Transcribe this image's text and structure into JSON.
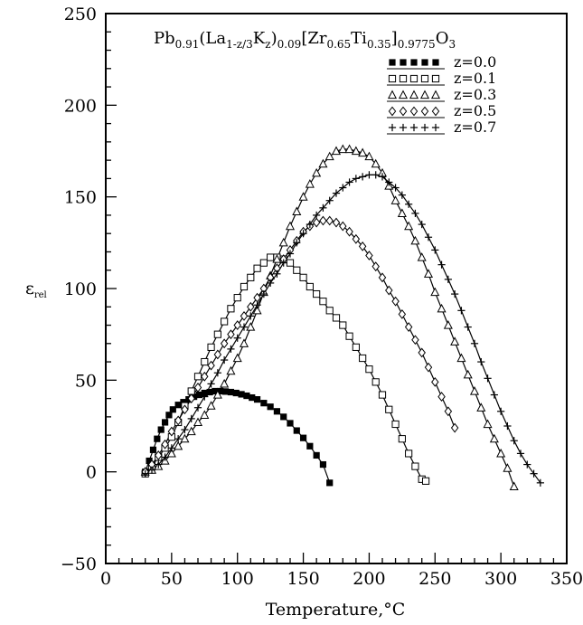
{
  "chart_data": {
    "type": "scatter",
    "title_main": "Pb",
    "title_parts": [
      {
        "t": "Pb",
        "sub": false
      },
      {
        "t": "0.91",
        "sub": true
      },
      {
        "t": "(La",
        "sub": false
      },
      {
        "t": "1-z/3",
        "sub": true
      },
      {
        "t": "K",
        "sub": false
      },
      {
        "t": "z",
        "sub": true
      },
      {
        "t": ")",
        "sub": false
      },
      {
        "t": "0.09",
        "sub": true
      },
      {
        "t": "[Zr",
        "sub": false
      },
      {
        "t": "0.65",
        "sub": true
      },
      {
        "t": "Ti",
        "sub": false
      },
      {
        "t": "0.35",
        "sub": true
      },
      {
        "t": "]",
        "sub": false
      },
      {
        "t": "0.9775",
        "sub": true
      },
      {
        "t": "O",
        "sub": false
      },
      {
        "t": "3",
        "sub": true
      }
    ],
    "xlabel": "Temperature,°C",
    "ylabel_main": "ε",
    "ylabel_sub": "rel",
    "xlim": [
      0,
      350
    ],
    "ylim": [
      -50,
      250
    ],
    "xticks": [
      0,
      50,
      100,
      150,
      200,
      250,
      300,
      350
    ],
    "yticks": [
      -50,
      0,
      50,
      100,
      150,
      200,
      250
    ],
    "legend_position": "top-right",
    "series": [
      {
        "name": "z=0.0",
        "marker": "filled-square",
        "sym": "■■■■■",
        "fit": true,
        "x": [
          30,
          33,
          36,
          39,
          42,
          45,
          48,
          51,
          55,
          59,
          63,
          67,
          71,
          75,
          79,
          83,
          87,
          91,
          95,
          99,
          103,
          107,
          111,
          115,
          120,
          125,
          130,
          135,
          140,
          145,
          150,
          155,
          160,
          165,
          170
        ],
        "y": [
          0,
          6,
          12,
          18,
          23,
          27,
          31,
          34,
          36.5,
          38,
          39.5,
          41,
          42,
          43,
          43.5,
          44,
          44,
          43.8,
          43.5,
          43,
          42.3,
          41.5,
          40.5,
          39.5,
          37.5,
          35.5,
          33,
          30,
          26.5,
          22.5,
          18.5,
          14,
          9,
          4,
          -6
        ]
      },
      {
        "name": "z=0.1",
        "marker": "open-square",
        "sym": "□□□□□",
        "fit": true,
        "x": [
          30,
          35,
          40,
          45,
          50,
          55,
          60,
          65,
          70,
          75,
          80,
          85,
          90,
          95,
          100,
          105,
          110,
          115,
          120,
          125,
          130,
          135,
          140,
          145,
          150,
          155,
          160,
          165,
          170,
          175,
          180,
          185,
          190,
          195,
          200,
          205,
          210,
          215,
          220,
          225,
          230,
          235,
          240,
          243
        ],
        "y": [
          -1,
          3,
          8,
          13,
          19,
          27,
          36,
          44,
          52,
          60,
          68,
          75,
          82,
          89,
          95,
          101,
          106,
          111,
          114,
          117,
          117,
          116,
          114,
          110,
          106,
          101,
          97,
          93,
          88,
          84,
          80,
          74,
          68,
          62,
          56,
          49,
          42,
          34,
          26,
          18,
          10,
          3,
          -4,
          -5
        ]
      },
      {
        "name": "z=0.3",
        "marker": "open-triangle",
        "sym": "△△△△△",
        "fit": true,
        "x": [
          30,
          35,
          40,
          45,
          50,
          55,
          60,
          65,
          70,
          75,
          80,
          85,
          90,
          95,
          100,
          105,
          110,
          115,
          120,
          125,
          130,
          135,
          140,
          145,
          150,
          155,
          160,
          165,
          170,
          175,
          180,
          185,
          190,
          195,
          200,
          205,
          210,
          215,
          220,
          225,
          230,
          235,
          240,
          245,
          250,
          255,
          260,
          265,
          270,
          275,
          280,
          285,
          290,
          295,
          300,
          305,
          310
        ],
        "y": [
          0,
          1,
          3,
          6,
          10,
          14,
          18,
          22,
          27,
          31,
          36,
          42,
          48,
          55,
          62,
          70,
          79,
          88,
          98,
          107,
          116,
          125,
          134,
          142,
          150,
          157,
          163,
          168,
          172,
          175,
          176,
          176,
          175,
          174,
          172,
          168,
          163,
          156,
          148,
          141,
          134,
          126,
          117,
          108,
          98,
          89,
          80,
          71,
          62,
          53,
          44,
          35,
          26,
          18,
          10,
          2,
          -8
        ]
      },
      {
        "name": "z=0.5",
        "marker": "open-diamond",
        "sym": "◊◊◊◊◊",
        "fit": true,
        "x": [
          30,
          35,
          40,
          45,
          50,
          55,
          60,
          65,
          70,
          75,
          80,
          85,
          90,
          95,
          100,
          105,
          110,
          115,
          120,
          125,
          130,
          135,
          140,
          145,
          150,
          155,
          160,
          165,
          170,
          175,
          180,
          185,
          190,
          195,
          200,
          205,
          210,
          215,
          220,
          225,
          230,
          235,
          240,
          245,
          250,
          255,
          260,
          265
        ],
        "y": [
          0,
          4,
          9,
          15,
          22,
          28,
          34,
          40,
          46,
          52,
          58,
          64,
          70,
          75,
          80,
          85,
          90,
          95,
          100,
          106,
          111,
          116,
          121,
          126,
          131,
          134,
          136,
          137,
          137,
          136,
          134,
          131,
          127,
          123,
          118,
          112,
          106,
          99,
          93,
          86,
          79,
          72,
          65,
          57,
          49,
          41,
          33,
          24
        ]
      },
      {
        "name": "z=0.7",
        "marker": "plus",
        "sym": "+++++",
        "fit": true,
        "x": [
          30,
          35,
          40,
          45,
          50,
          55,
          60,
          65,
          70,
          75,
          80,
          85,
          90,
          95,
          100,
          105,
          110,
          115,
          120,
          125,
          130,
          135,
          140,
          145,
          150,
          155,
          160,
          165,
          170,
          175,
          180,
          185,
          190,
          195,
          200,
          205,
          210,
          215,
          220,
          225,
          230,
          235,
          240,
          245,
          250,
          255,
          260,
          265,
          270,
          275,
          280,
          285,
          290,
          295,
          300,
          305,
          310,
          315,
          320,
          325,
          330
        ],
        "y": [
          -1,
          1,
          4,
          8,
          13,
          18,
          23,
          29,
          35,
          41,
          48,
          54,
          61,
          67,
          73,
          79,
          85,
          91,
          97,
          103,
          108,
          114,
          119,
          125,
          130,
          135,
          140,
          144,
          148,
          152,
          155,
          158,
          160,
          161,
          162,
          162,
          161,
          158,
          155,
          151,
          146,
          141,
          135,
          128,
          121,
          113,
          105,
          97,
          88,
          79,
          70,
          60,
          51,
          42,
          33,
          25,
          17,
          10,
          4,
          -1,
          -6
        ]
      }
    ]
  }
}
